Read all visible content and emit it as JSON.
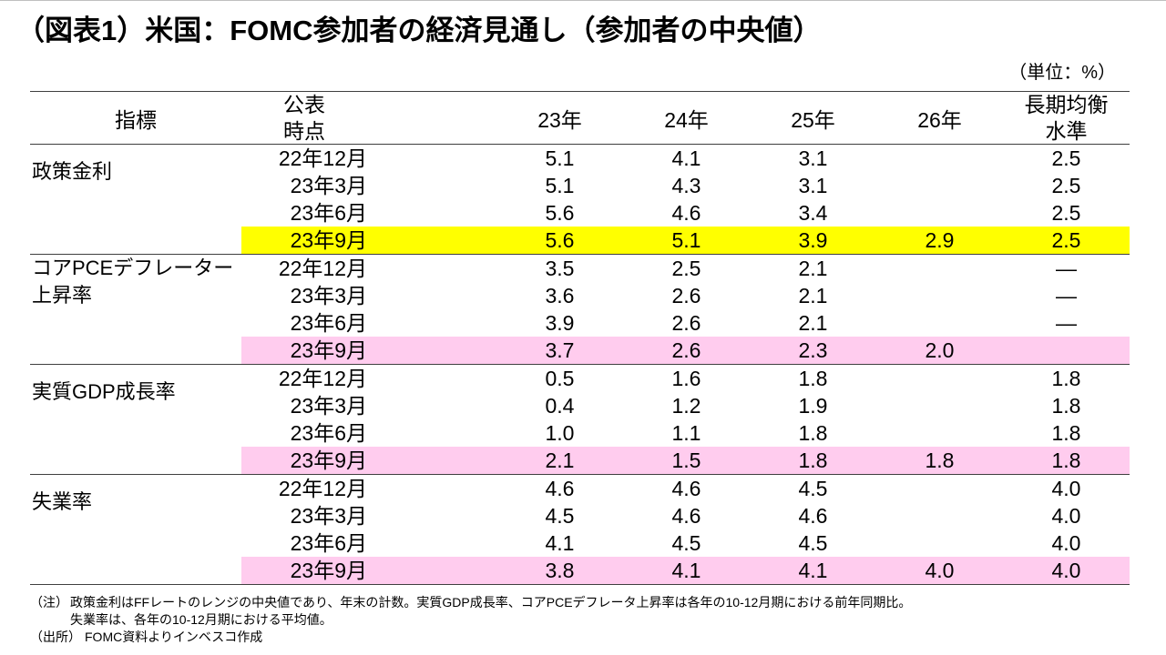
{
  "title": "（図表1）米国：FOMC参加者の経済見通し（参加者の中央値）",
  "unit": "（単位：%）",
  "table": {
    "headers": {
      "indicator": "指標",
      "published": [
        "公表",
        "時点"
      ],
      "years": [
        "23年",
        "24年",
        "25年",
        "26年"
      ],
      "longrun": [
        "長期均衡",
        "水準"
      ]
    },
    "groups": [
      {
        "indicator": [
          "政策金利"
        ],
        "highlight": "#FFFF00",
        "rows": [
          {
            "period": "22年12月",
            "values": [
              "5.1",
              "4.1",
              "3.1",
              null,
              "2.5"
            ]
          },
          {
            "period": "23年3月",
            "values": [
              "5.1",
              "4.3",
              "3.1",
              null,
              "2.5"
            ]
          },
          {
            "period": "23年6月",
            "values": [
              "5.6",
              "4.6",
              "3.4",
              null,
              "2.5"
            ]
          },
          {
            "period": "23年9月",
            "values": [
              "5.6",
              "5.1",
              "3.9",
              "2.9",
              "2.5"
            ]
          }
        ]
      },
      {
        "indicator": [
          "コアPCEデフレーター",
          "上昇率"
        ],
        "highlight": "#FFCCEE",
        "rows": [
          {
            "period": "22年12月",
            "values": [
              "3.5",
              "2.5",
              "2.1",
              null,
              "—"
            ]
          },
          {
            "period": "23年3月",
            "values": [
              "3.6",
              "2.6",
              "2.1",
              null,
              "—"
            ]
          },
          {
            "period": "23年6月",
            "values": [
              "3.9",
              "2.6",
              "2.1",
              null,
              "—"
            ]
          },
          {
            "period": "23年9月",
            "values": [
              "3.7",
              "2.6",
              "2.3",
              "2.0",
              null
            ]
          }
        ]
      },
      {
        "indicator": [
          "実質GDP成長率"
        ],
        "highlight": "#FFCCEE",
        "rows": [
          {
            "period": "22年12月",
            "values": [
              "0.5",
              "1.6",
              "1.8",
              null,
              "1.8"
            ]
          },
          {
            "period": "23年3月",
            "values": [
              "0.4",
              "1.2",
              "1.9",
              null,
              "1.8"
            ]
          },
          {
            "period": "23年6月",
            "values": [
              "1.0",
              "1.1",
              "1.8",
              null,
              "1.8"
            ]
          },
          {
            "period": "23年9月",
            "values": [
              "2.1",
              "1.5",
              "1.8",
              "1.8",
              "1.8"
            ]
          }
        ]
      },
      {
        "indicator": [
          "失業率"
        ],
        "highlight": "#FFCCEE",
        "rows": [
          {
            "period": "22年12月",
            "values": [
              "4.6",
              "4.6",
              "4.5",
              null,
              "4.0"
            ]
          },
          {
            "period": "23年3月",
            "values": [
              "4.5",
              "4.6",
              "4.6",
              null,
              "4.0"
            ]
          },
          {
            "period": "23年6月",
            "values": [
              "4.1",
              "4.5",
              "4.5",
              null,
              "4.0"
            ]
          },
          {
            "period": "23年9月",
            "values": [
              "3.8",
              "4.1",
              "4.1",
              "4.0",
              "4.0"
            ]
          }
        ]
      }
    ]
  },
  "notes": {
    "note_label": "（注）",
    "note_lines": [
      "政策金利はFFレートのレンジの中央値であり、年末の計数。実質GDP成長率、コアPCEデフレータ上昇率は各年の10-12月期における前年同期比。",
      "失業率は、各年の10-12月期における平均値。"
    ],
    "source_label": "（出所）",
    "source_text": "FOMC資料よりインベスコ作成"
  }
}
